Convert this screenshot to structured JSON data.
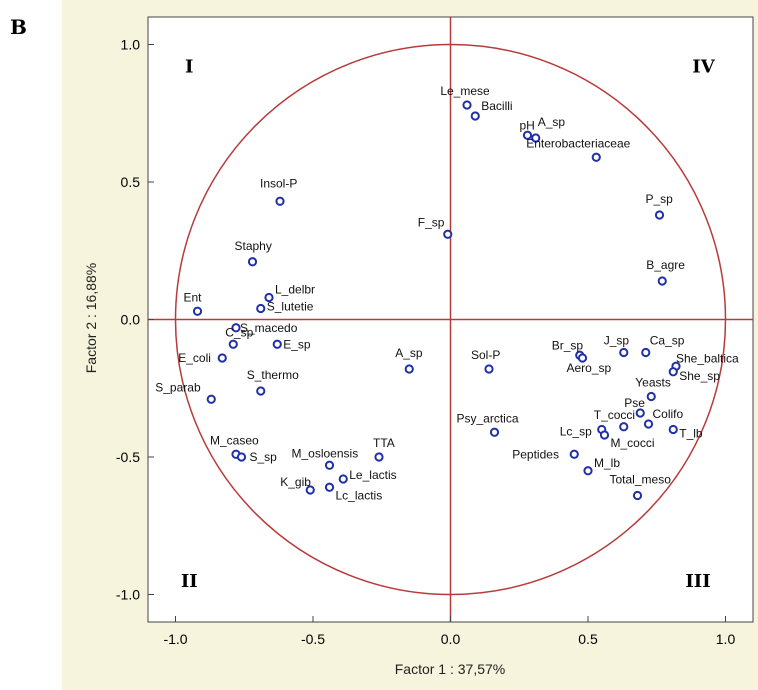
{
  "panel_letter": "B",
  "chart_data": {
    "type": "scatter",
    "xlabel": "Factor 1 : 37,57%",
    "ylabel": "Factor 2 : 16,88%",
    "xlim": [
      -1.1,
      1.1
    ],
    "ylim": [
      -1.1,
      1.1
    ],
    "xticks": [
      "-1.0",
      "-0.5",
      "0.0",
      "0.5",
      "1.0"
    ],
    "yticks": [
      "1.0",
      "0.5",
      "0.0",
      "-0.5",
      "-1.0"
    ],
    "unit_circle": true,
    "quadrants": [
      {
        "label": "I",
        "x": -0.95,
        "y": 0.92
      },
      {
        "label": "IV",
        "x": 0.92,
        "y": 0.92
      },
      {
        "label": "II",
        "x": -0.95,
        "y": -0.95
      },
      {
        "label": "III",
        "x": 0.9,
        "y": -0.95
      }
    ],
    "points": [
      {
        "name": "Le_mese",
        "x": 0.06,
        "y": 0.78
      },
      {
        "name": "Bacilli",
        "x": 0.09,
        "y": 0.74
      },
      {
        "name": "pH",
        "x": 0.28,
        "y": 0.67
      },
      {
        "name": "A_sp",
        "x": 0.31,
        "y": 0.66
      },
      {
        "name": "Enterobacteriaceae",
        "x": 0.53,
        "y": 0.59
      },
      {
        "name": "P_sp",
        "x": 0.76,
        "y": 0.38
      },
      {
        "name": "B_agre",
        "x": 0.77,
        "y": 0.14
      },
      {
        "name": "F_sp",
        "x": -0.01,
        "y": 0.31
      },
      {
        "name": "Insol-P",
        "x": -0.62,
        "y": 0.43
      },
      {
        "name": "Staphy",
        "x": -0.72,
        "y": 0.21
      },
      {
        "name": "L_delbr",
        "x": -0.66,
        "y": 0.08
      },
      {
        "name": "S_lutetie",
        "x": -0.69,
        "y": 0.04
      },
      {
        "name": "Ent",
        "x": -0.92,
        "y": 0.03
      },
      {
        "name": "S_macedo",
        "x": -0.78,
        "y": -0.03
      },
      {
        "name": "C_sp",
        "x": -0.79,
        "y": -0.09
      },
      {
        "name": "E_sp",
        "x": -0.63,
        "y": -0.09
      },
      {
        "name": "E_coli",
        "x": -0.83,
        "y": -0.14
      },
      {
        "name": "S_thermo",
        "x": -0.69,
        "y": -0.26
      },
      {
        "name": "S_parab",
        "x": -0.87,
        "y": -0.29
      },
      {
        "name": "A_sp",
        "x": -0.15,
        "y": -0.18
      },
      {
        "name": "Sol-P",
        "x": 0.14,
        "y": -0.18
      },
      {
        "name": "Br_sp",
        "x": 0.47,
        "y": -0.13
      },
      {
        "name": "Aero_sp",
        "x": 0.48,
        "y": -0.14
      },
      {
        "name": "J_sp",
        "x": 0.63,
        "y": -0.12
      },
      {
        "name": "Ca_sp",
        "x": 0.71,
        "y": -0.12
      },
      {
        "name": "She_baltica",
        "x": 0.82,
        "y": -0.17
      },
      {
        "name": "She_sp",
        "x": 0.81,
        "y": -0.19
      },
      {
        "name": "Yeasts",
        "x": 0.73,
        "y": -0.28
      },
      {
        "name": "Pse",
        "x": 0.69,
        "y": -0.34
      },
      {
        "name": "T_cocci",
        "x": 0.63,
        "y": -0.39
      },
      {
        "name": "Colifo",
        "x": 0.72,
        "y": -0.38
      },
      {
        "name": "T_lb",
        "x": 0.81,
        "y": -0.4
      },
      {
        "name": "Lc_sp",
        "x": 0.55,
        "y": -0.4
      },
      {
        "name": "M_cocci",
        "x": 0.56,
        "y": -0.42
      },
      {
        "name": "Psy_arctica",
        "x": 0.16,
        "y": -0.41
      },
      {
        "name": "Peptides",
        "x": 0.45,
        "y": -0.49
      },
      {
        "name": "M_lb",
        "x": 0.5,
        "y": -0.55
      },
      {
        "name": "Total_meso",
        "x": 0.68,
        "y": -0.64
      },
      {
        "name": "M_caseo",
        "x": -0.78,
        "y": -0.49
      },
      {
        "name": "S_sp",
        "x": -0.76,
        "y": -0.5
      },
      {
        "name": "M_osloensis",
        "x": -0.44,
        "y": -0.53
      },
      {
        "name": "TTA",
        "x": -0.26,
        "y": -0.5
      },
      {
        "name": "Le_lactis",
        "x": -0.39,
        "y": -0.58
      },
      {
        "name": "K_gib",
        "x": -0.51,
        "y": -0.62
      },
      {
        "name": "Lc_lactis",
        "x": -0.44,
        "y": -0.61
      }
    ],
    "colors": {
      "point": "#1f2fa8",
      "circle": "#b83a3a",
      "axis_lines": "#b83a3a",
      "plot_bg": "#ffffff",
      "outer_bg": "#f6f4dc"
    }
  }
}
